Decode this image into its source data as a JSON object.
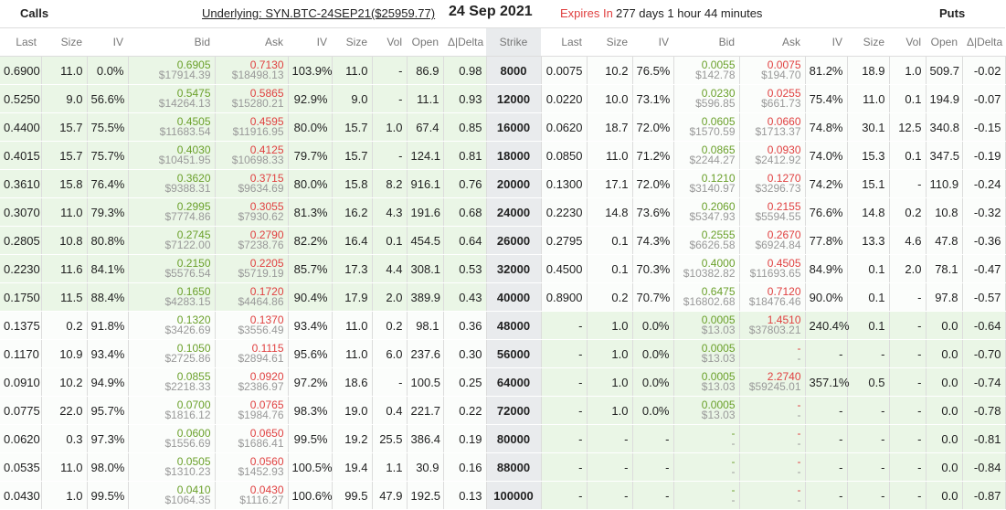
{
  "header": {
    "calls_label": "Calls",
    "underlying": "Underlying: SYN.BTC-24SEP21($25959.77)",
    "expiry_date": "24 Sep 2021",
    "expires_in_label": "Expires In",
    "expires_in_value": "277 days 1 hour 44 minutes",
    "puts_label": "Puts"
  },
  "columns": {
    "calls": [
      "Last",
      "Size",
      "IV",
      "Bid",
      "Ask",
      "IV",
      "Size",
      "Vol",
      "Open",
      "Δ|Delta"
    ],
    "strike": "Strike",
    "puts": [
      "Last",
      "Size",
      "IV",
      "Bid",
      "Ask",
      "IV",
      "Size",
      "Vol",
      "Open",
      "Δ|Delta"
    ]
  },
  "colors": {
    "green": "#6aa02a",
    "red": "#e04040",
    "itm_bg": "#eaf6e6",
    "strike_bg": "#e9ebed"
  },
  "rows": [
    {
      "c": {
        "last": "0.6900",
        "size": "11.0",
        "iv": "0.0%",
        "bid": "0.6905",
        "bid_usd": "$17914.39",
        "ask": "0.7130",
        "ask_usd": "$18498.13",
        "ask_iv": "103.9%",
        "ask_size": "11.0",
        "vol": "-",
        "open": "86.9",
        "delta": "0.98"
      },
      "strike": "8000",
      "p": {
        "last": "0.0075",
        "size": "10.2",
        "iv": "76.5%",
        "bid": "0.0055",
        "bid_usd": "$142.78",
        "ask": "0.0075",
        "ask_usd": "$194.70",
        "ask_iv": "81.2%",
        "ask_size": "18.9",
        "vol": "1.0",
        "open": "509.7",
        "delta": "-0.02"
      }
    },
    {
      "c": {
        "last": "0.5250",
        "size": "9.0",
        "iv": "56.6%",
        "bid": "0.5475",
        "bid_usd": "$14264.13",
        "ask": "0.5865",
        "ask_usd": "$15280.21",
        "ask_iv": "92.9%",
        "ask_size": "9.0",
        "vol": "-",
        "open": "11.1",
        "delta": "0.93"
      },
      "strike": "12000",
      "p": {
        "last": "0.0220",
        "size": "10.0",
        "iv": "73.1%",
        "bid": "0.0230",
        "bid_usd": "$596.85",
        "ask": "0.0255",
        "ask_usd": "$661.73",
        "ask_iv": "75.4%",
        "ask_size": "11.0",
        "vol": "0.1",
        "open": "194.9",
        "delta": "-0.07"
      }
    },
    {
      "c": {
        "last": "0.4400",
        "size": "15.7",
        "iv": "75.5%",
        "bid": "0.4505",
        "bid_usd": "$11683.54",
        "ask": "0.4595",
        "ask_usd": "$11916.95",
        "ask_iv": "80.0%",
        "ask_size": "15.7",
        "vol": "1.0",
        "open": "67.4",
        "delta": "0.85"
      },
      "strike": "16000",
      "p": {
        "last": "0.0620",
        "size": "18.7",
        "iv": "72.0%",
        "bid": "0.0605",
        "bid_usd": "$1570.59",
        "ask": "0.0660",
        "ask_usd": "$1713.37",
        "ask_iv": "74.8%",
        "ask_size": "30.1",
        "vol": "12.5",
        "open": "340.8",
        "delta": "-0.15"
      }
    },
    {
      "c": {
        "last": "0.4015",
        "size": "15.7",
        "iv": "75.7%",
        "bid": "0.4030",
        "bid_usd": "$10451.95",
        "ask": "0.4125",
        "ask_usd": "$10698.33",
        "ask_iv": "79.7%",
        "ask_size": "15.7",
        "vol": "-",
        "open": "124.1",
        "delta": "0.81"
      },
      "strike": "18000",
      "p": {
        "last": "0.0850",
        "size": "11.0",
        "iv": "71.2%",
        "bid": "0.0865",
        "bid_usd": "$2244.27",
        "ask": "0.0930",
        "ask_usd": "$2412.92",
        "ask_iv": "74.0%",
        "ask_size": "15.3",
        "vol": "0.1",
        "open": "347.5",
        "delta": "-0.19"
      }
    },
    {
      "c": {
        "last": "0.3610",
        "size": "15.8",
        "iv": "76.4%",
        "bid": "0.3620",
        "bid_usd": "$9388.31",
        "ask": "0.3715",
        "ask_usd": "$9634.69",
        "ask_iv": "80.0%",
        "ask_size": "15.8",
        "vol": "8.2",
        "open": "916.1",
        "delta": "0.76"
      },
      "strike": "20000",
      "p": {
        "last": "0.1300",
        "size": "17.1",
        "iv": "72.0%",
        "bid": "0.1210",
        "bid_usd": "$3140.97",
        "ask": "0.1270",
        "ask_usd": "$3296.73",
        "ask_iv": "74.2%",
        "ask_size": "15.1",
        "vol": "-",
        "open": "110.9",
        "delta": "-0.24"
      }
    },
    {
      "c": {
        "last": "0.3070",
        "size": "11.0",
        "iv": "79.3%",
        "bid": "0.2995",
        "bid_usd": "$7774.86",
        "ask": "0.3055",
        "ask_usd": "$7930.62",
        "ask_iv": "81.3%",
        "ask_size": "16.2",
        "vol": "4.3",
        "open": "191.6",
        "delta": "0.68"
      },
      "strike": "24000",
      "p": {
        "last": "0.2230",
        "size": "14.8",
        "iv": "73.6%",
        "bid": "0.2060",
        "bid_usd": "$5347.93",
        "ask": "0.2155",
        "ask_usd": "$5594.55",
        "ask_iv": "76.6%",
        "ask_size": "14.8",
        "vol": "0.2",
        "open": "10.8",
        "delta": "-0.32"
      }
    },
    {
      "c": {
        "last": "0.2805",
        "size": "10.8",
        "iv": "80.8%",
        "bid": "0.2745",
        "bid_usd": "$7122.00",
        "ask": "0.2790",
        "ask_usd": "$7238.76",
        "ask_iv": "82.2%",
        "ask_size": "16.4",
        "vol": "0.1",
        "open": "454.5",
        "delta": "0.64"
      },
      "strike": "26000",
      "p": {
        "last": "0.2795",
        "size": "0.1",
        "iv": "74.3%",
        "bid": "0.2555",
        "bid_usd": "$6626.58",
        "ask": "0.2670",
        "ask_usd": "$6924.84",
        "ask_iv": "77.8%",
        "ask_size": "13.3",
        "vol": "4.6",
        "open": "47.8",
        "delta": "-0.36"
      }
    },
    {
      "c": {
        "last": "0.2230",
        "size": "11.6",
        "iv": "84.1%",
        "bid": "0.2150",
        "bid_usd": "$5576.54",
        "ask": "0.2205",
        "ask_usd": "$5719.19",
        "ask_iv": "85.7%",
        "ask_size": "17.3",
        "vol": "4.4",
        "open": "308.1",
        "delta": "0.53"
      },
      "strike": "32000",
      "p": {
        "last": "0.4500",
        "size": "0.1",
        "iv": "70.3%",
        "bid": "0.4000",
        "bid_usd": "$10382.82",
        "ask": "0.4505",
        "ask_usd": "$11693.65",
        "ask_iv": "84.9%",
        "ask_size": "0.1",
        "vol": "2.0",
        "open": "78.1",
        "delta": "-0.47"
      }
    },
    {
      "c": {
        "last": "0.1750",
        "size": "11.5",
        "iv": "88.4%",
        "bid": "0.1650",
        "bid_usd": "$4283.15",
        "ask": "0.1720",
        "ask_usd": "$4464.86",
        "ask_iv": "90.4%",
        "ask_size": "17.9",
        "vol": "2.0",
        "open": "389.9",
        "delta": "0.43"
      },
      "strike": "40000",
      "p": {
        "last": "0.8900",
        "size": "0.2",
        "iv": "70.7%",
        "bid": "0.6475",
        "bid_usd": "$16802.68",
        "ask": "0.7120",
        "ask_usd": "$18476.46",
        "ask_iv": "90.0%",
        "ask_size": "0.1",
        "vol": "-",
        "open": "97.8",
        "delta": "-0.57"
      }
    },
    {
      "c": {
        "last": "0.1375",
        "size": "0.2",
        "iv": "91.8%",
        "bid": "0.1320",
        "bid_usd": "$3426.69",
        "ask": "0.1370",
        "ask_usd": "$3556.49",
        "ask_iv": "93.4%",
        "ask_size": "11.0",
        "vol": "0.2",
        "open": "98.1",
        "delta": "0.36"
      },
      "strike": "48000",
      "p": {
        "last": "-",
        "size": "1.0",
        "iv": "0.0%",
        "bid": "0.0005",
        "bid_usd": "$13.03",
        "ask": "1.4510",
        "ask_usd": "$37803.21",
        "ask_iv": "240.4%",
        "ask_size": "0.1",
        "vol": "-",
        "open": "0.0",
        "delta": "-0.64"
      }
    },
    {
      "c": {
        "last": "0.1170",
        "size": "10.9",
        "iv": "93.4%",
        "bid": "0.1050",
        "bid_usd": "$2725.86",
        "ask": "0.1115",
        "ask_usd": "$2894.61",
        "ask_iv": "95.6%",
        "ask_size": "11.0",
        "vol": "6.0",
        "open": "237.6",
        "delta": "0.30"
      },
      "strike": "56000",
      "p": {
        "last": "-",
        "size": "1.0",
        "iv": "0.0%",
        "bid": "0.0005",
        "bid_usd": "$13.03",
        "ask": "-",
        "ask_usd": "-",
        "ask_iv": "-",
        "ask_size": "-",
        "vol": "-",
        "open": "0.0",
        "delta": "-0.70"
      }
    },
    {
      "c": {
        "last": "0.0910",
        "size": "10.2",
        "iv": "94.9%",
        "bid": "0.0855",
        "bid_usd": "$2218.33",
        "ask": "0.0920",
        "ask_usd": "$2386.97",
        "ask_iv": "97.2%",
        "ask_size": "18.6",
        "vol": "-",
        "open": "100.5",
        "delta": "0.25"
      },
      "strike": "64000",
      "p": {
        "last": "-",
        "size": "1.0",
        "iv": "0.0%",
        "bid": "0.0005",
        "bid_usd": "$13.03",
        "ask": "2.2740",
        "ask_usd": "$59245.01",
        "ask_iv": "357.1%",
        "ask_size": "0.5",
        "vol": "-",
        "open": "0.0",
        "delta": "-0.74"
      }
    },
    {
      "c": {
        "last": "0.0775",
        "size": "22.0",
        "iv": "95.7%",
        "bid": "0.0700",
        "bid_usd": "$1816.12",
        "ask": "0.0765",
        "ask_usd": "$1984.76",
        "ask_iv": "98.3%",
        "ask_size": "19.0",
        "vol": "0.4",
        "open": "221.7",
        "delta": "0.22"
      },
      "strike": "72000",
      "p": {
        "last": "-",
        "size": "1.0",
        "iv": "0.0%",
        "bid": "0.0005",
        "bid_usd": "$13.03",
        "ask": "-",
        "ask_usd": "-",
        "ask_iv": "-",
        "ask_size": "-",
        "vol": "-",
        "open": "0.0",
        "delta": "-0.78"
      }
    },
    {
      "c": {
        "last": "0.0620",
        "size": "0.3",
        "iv": "97.3%",
        "bid": "0.0600",
        "bid_usd": "$1556.69",
        "ask": "0.0650",
        "ask_usd": "$1686.41",
        "ask_iv": "99.5%",
        "ask_size": "19.2",
        "vol": "25.5",
        "open": "386.4",
        "delta": "0.19"
      },
      "strike": "80000",
      "p": {
        "last": "-",
        "size": "-",
        "iv": "-",
        "bid": "-",
        "bid_usd": "-",
        "ask": "-",
        "ask_usd": "-",
        "ask_iv": "-",
        "ask_size": "-",
        "vol": "-",
        "open": "0.0",
        "delta": "-0.81"
      }
    },
    {
      "c": {
        "last": "0.0535",
        "size": "11.0",
        "iv": "98.0%",
        "bid": "0.0505",
        "bid_usd": "$1310.23",
        "ask": "0.0560",
        "ask_usd": "$1452.93",
        "ask_iv": "100.5%",
        "ask_size": "19.4",
        "vol": "1.1",
        "open": "30.9",
        "delta": "0.16"
      },
      "strike": "88000",
      "p": {
        "last": "-",
        "size": "-",
        "iv": "-",
        "bid": "-",
        "bid_usd": "-",
        "ask": "-",
        "ask_usd": "-",
        "ask_iv": "-",
        "ask_size": "-",
        "vol": "-",
        "open": "0.0",
        "delta": "-0.84"
      }
    },
    {
      "c": {
        "last": "0.0430",
        "size": "1.0",
        "iv": "99.5%",
        "bid": "0.0410",
        "bid_usd": "$1064.35",
        "ask": "0.0430",
        "ask_usd": "$1116.27",
        "ask_iv": "100.6%",
        "ask_size": "99.5",
        "vol": "47.9",
        "open": "192.5",
        "delta": "0.13"
      },
      "strike": "100000",
      "p": {
        "last": "-",
        "size": "-",
        "iv": "-",
        "bid": "-",
        "bid_usd": "-",
        "ask": "-",
        "ask_usd": "-",
        "ask_iv": "-",
        "ask_size": "-",
        "vol": "-",
        "open": "0.0",
        "delta": "-0.87"
      }
    }
  ]
}
